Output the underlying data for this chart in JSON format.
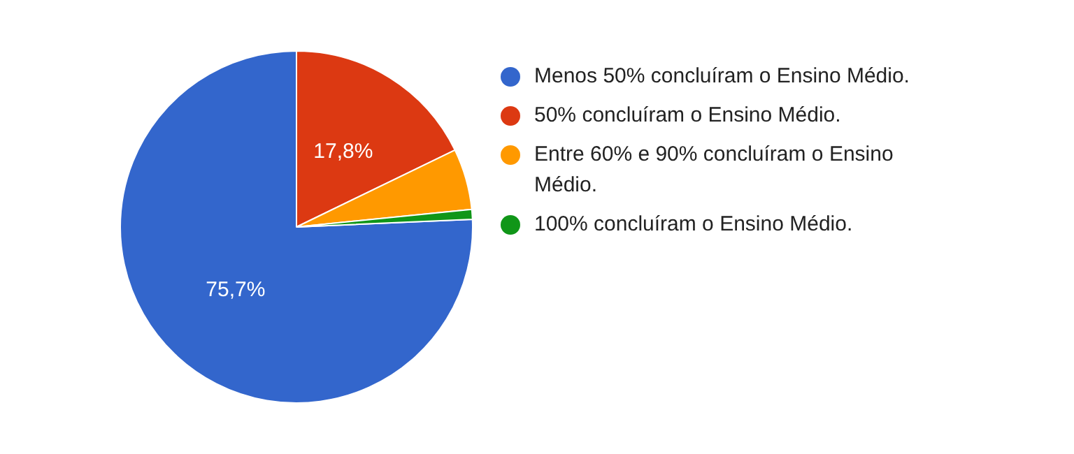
{
  "chart_data": {
    "type": "pie",
    "categories": [
      "Menos 50% concluíram o Ensino Médio.",
      "50% concluíram o Ensino Médio.",
      "Entre 60% e 90% concluíram o Ensino Médio.",
      "100% concluíram o Ensino Médio."
    ],
    "values": [
      75.7,
      17.8,
      5.6,
      0.9
    ],
    "colors": [
      "#3366cc",
      "#dc3912",
      "#ff9900",
      "#109618"
    ],
    "value_labels": [
      "75,7%",
      "17,8%",
      null,
      null
    ],
    "legend": "right"
  }
}
